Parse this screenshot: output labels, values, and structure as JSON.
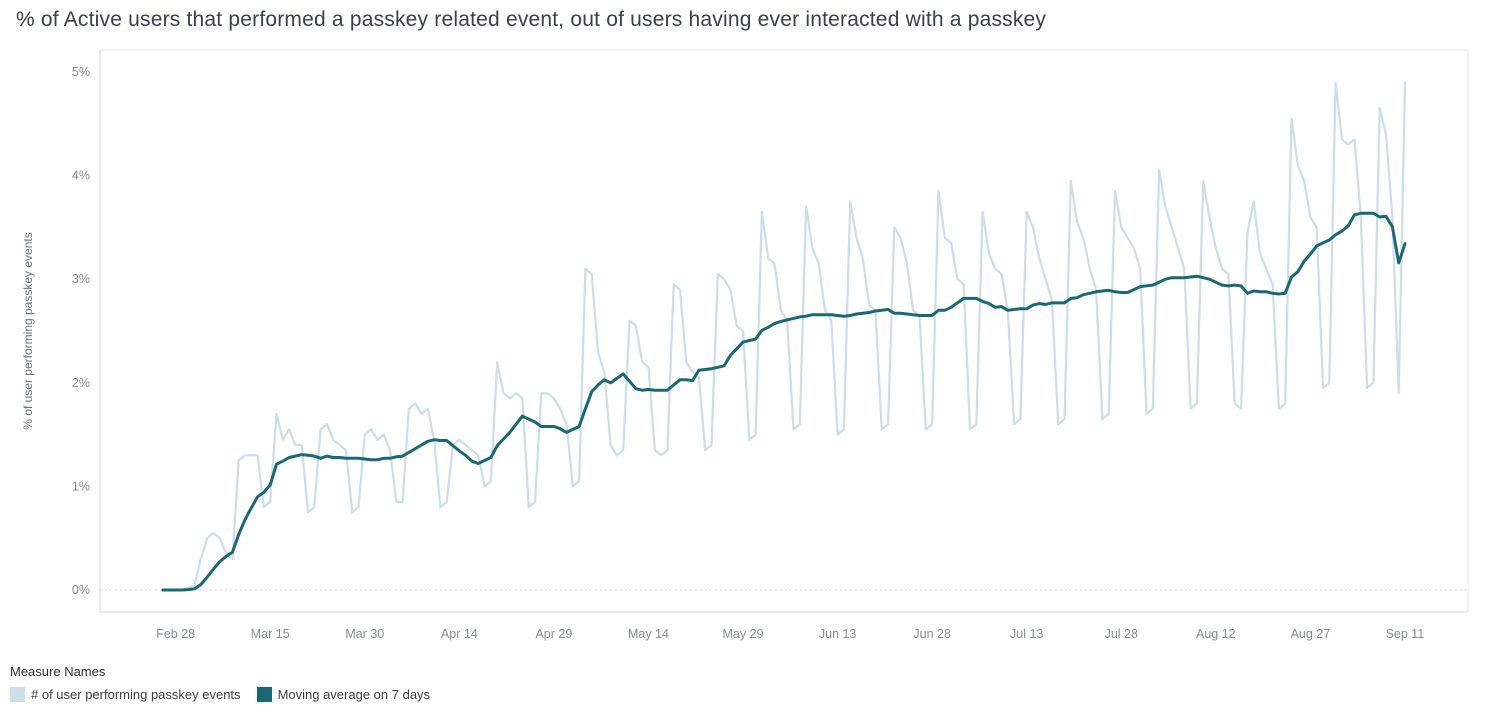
{
  "title": "% of Active users that performed a passkey related event, out of users having ever interacted with a passkey",
  "legend": {
    "title": "Measure Names"
  },
  "chart_data": {
    "type": "line",
    "x_unit": "day",
    "start_date": "Feb 26",
    "end_date": "Sep 11",
    "ylabel": "% of user performing passkey events",
    "ylim": [
      0,
      5
    ],
    "grid": "dotted-zero-line-only",
    "legend_position": "bottom-left",
    "y_ticks": [
      {
        "v": 0,
        "label": "0%"
      },
      {
        "v": 1,
        "label": "1%"
      },
      {
        "v": 2,
        "label": "2%"
      },
      {
        "v": 3,
        "label": "3%"
      },
      {
        "v": 4,
        "label": "4%"
      },
      {
        "v": 5,
        "label": "5%"
      }
    ],
    "x_ticks": [
      {
        "i": 2,
        "label": "Feb 28"
      },
      {
        "i": 17,
        "label": "Mar 15"
      },
      {
        "i": 32,
        "label": "Mar 30"
      },
      {
        "i": 47,
        "label": "Apr 14"
      },
      {
        "i": 62,
        "label": "Apr 29"
      },
      {
        "i": 77,
        "label": "May 14"
      },
      {
        "i": 92,
        "label": "May 29"
      },
      {
        "i": 107,
        "label": "Jun 13"
      },
      {
        "i": 122,
        "label": "Jun 28"
      },
      {
        "i": 137,
        "label": "Jul 13"
      },
      {
        "i": 152,
        "label": "Jul 28"
      },
      {
        "i": 167,
        "label": "Aug 12"
      },
      {
        "i": 182,
        "label": "Aug 27"
      },
      {
        "i": 197,
        "label": "Sep 11"
      }
    ],
    "series": [
      {
        "name": "# of user performing passkey events",
        "color": "#cddee7",
        "values": [
          0,
          0,
          0,
          0,
          0.02,
          0.05,
          0.3,
          0.5,
          0.55,
          0.5,
          0.35,
          0.3,
          1.25,
          1.3,
          1.3,
          1.3,
          0.8,
          0.85,
          1.7,
          1.45,
          1.55,
          1.4,
          1.4,
          0.75,
          0.8,
          1.55,
          1.6,
          1.45,
          1.4,
          1.35,
          0.75,
          0.8,
          1.5,
          1.55,
          1.45,
          1.5,
          1.35,
          0.85,
          0.85,
          1.75,
          1.8,
          1.7,
          1.75,
          1.45,
          0.8,
          0.85,
          1.4,
          1.45,
          1.4,
          1.35,
          1.3,
          1.0,
          1.05,
          2.2,
          1.9,
          1.85,
          1.9,
          1.85,
          0.8,
          0.85,
          1.9,
          1.9,
          1.85,
          1.75,
          1.6,
          1.0,
          1.05,
          3.1,
          3.05,
          2.3,
          2.1,
          1.4,
          1.3,
          1.35,
          2.6,
          2.55,
          2.2,
          2.15,
          1.35,
          1.3,
          1.35,
          2.95,
          2.9,
          2.2,
          2.1,
          2.05,
          1.35,
          1.4,
          3.05,
          3.0,
          2.9,
          2.55,
          2.5,
          1.45,
          1.5,
          3.65,
          3.2,
          3.15,
          2.7,
          2.6,
          1.55,
          1.6,
          3.7,
          3.3,
          3.15,
          2.7,
          2.6,
          1.5,
          1.55,
          3.75,
          3.4,
          3.2,
          2.75,
          2.7,
          1.55,
          1.6,
          3.5,
          3.4,
          3.15,
          2.7,
          2.65,
          1.55,
          1.6,
          3.85,
          3.4,
          3.35,
          3.0,
          2.95,
          1.55,
          1.6,
          3.65,
          3.25,
          3.1,
          3.05,
          2.7,
          1.6,
          1.65,
          3.65,
          3.5,
          3.2,
          3.0,
          2.8,
          1.6,
          1.65,
          3.95,
          3.55,
          3.4,
          3.1,
          2.9,
          1.65,
          1.7,
          3.85,
          3.5,
          3.4,
          3.3,
          3.1,
          1.7,
          1.75,
          4.05,
          3.7,
          3.5,
          3.3,
          3.1,
          1.75,
          1.8,
          3.95,
          3.6,
          3.3,
          3.1,
          3.05,
          1.8,
          1.75,
          3.45,
          3.75,
          3.25,
          3.1,
          2.95,
          1.75,
          1.8,
          4.55,
          4.1,
          3.95,
          3.6,
          3.5,
          1.95,
          2.0,
          4.9,
          4.35,
          4.3,
          4.35,
          3.6,
          1.95,
          2.0,
          4.65,
          4.4,
          3.6,
          1.9,
          4.9
        ]
      },
      {
        "name": "Moving average on 7 days",
        "color": "#1a6874",
        "derivation": "trailing 7-day moving average of the first series"
      }
    ]
  }
}
